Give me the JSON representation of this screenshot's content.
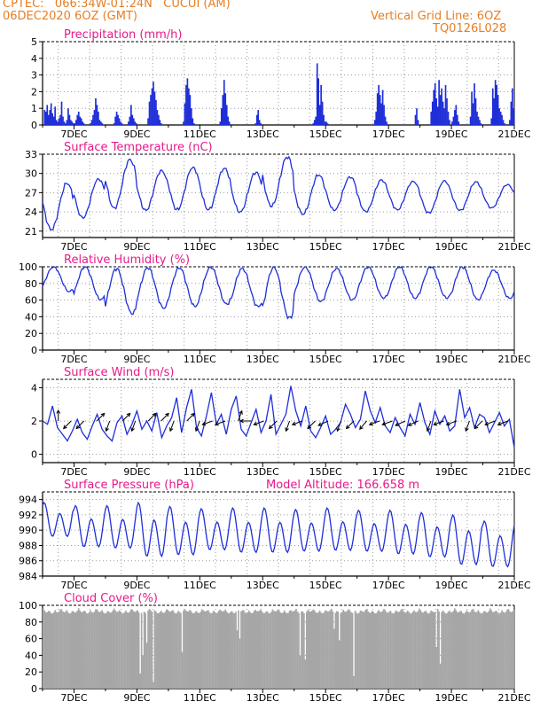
{
  "header": {
    "line1": "CPTEC:   066:34W-01:24N   CUCUI (AM)",
    "line2": "06DEC2020 6OZ (GMT)",
    "grid_note": "Vertical Grid Line: 6OZ",
    "code": "TQ0126L028"
  },
  "colors": {
    "header": "#e67e22",
    "titles": "#e8198b",
    "series": "#1f2fd8",
    "cloud": "#a6a6a6",
    "arrows": "#000000"
  },
  "chart_data": [
    {
      "type": "bar",
      "title": "Precipitation (mm/h)",
      "x_ticks": [
        "7DEC",
        "9DEC",
        "11DEC",
        "13DEC",
        "15DEC",
        "17DEC",
        "19DEC",
        "21DEC"
      ],
      "ylim": [
        0,
        5
      ],
      "y_ticks": [
        0,
        1,
        2,
        3,
        4,
        5
      ],
      "days": [
        [
          0,
          0.9,
          0.8,
          1.2,
          0.6,
          0.9,
          1.3,
          0.7,
          0.5,
          1.1,
          0.3,
          0.2,
          0.4,
          0.6,
          1.4,
          0.5,
          0.2,
          0.1,
          0.3,
          1.0,
          0.6,
          0.3,
          0.2,
          0.1
        ],
        [
          0.1,
          0.3,
          0.6,
          0.8,
          0.5,
          0.4,
          0.2,
          0.1,
          0,
          0,
          0,
          0,
          0.1,
          0.3,
          0.6,
          0.9,
          1.6,
          1.2,
          0.8,
          0.3,
          0.2,
          0.1,
          0,
          0
        ],
        [
          0,
          0,
          0,
          0,
          0,
          0,
          0.1,
          0.5,
          0.8,
          0.6,
          0.4,
          0.2,
          0.1,
          0,
          0,
          0,
          0,
          0.2,
          0.5,
          1.2,
          0.6,
          0.4,
          0.2,
          0.1
        ],
        [
          0,
          0,
          0,
          0,
          0,
          0,
          0,
          0,
          0.4,
          1.4,
          1.8,
          2.2,
          2.6,
          2.0,
          1.5,
          0.9,
          0.6,
          0.3,
          0.1,
          0,
          0,
          0,
          0,
          0
        ],
        [
          0,
          0,
          0,
          0,
          0,
          0,
          0,
          0,
          0,
          0,
          0,
          0.2,
          1.3,
          2.4,
          2.8,
          2.2,
          1.8,
          1.0,
          0.4,
          0.1,
          0,
          0,
          0,
          0
        ],
        [
          0,
          0,
          0,
          0,
          0,
          0,
          0,
          0,
          0,
          0,
          0,
          0,
          0,
          0,
          0,
          0.2,
          1.0,
          1.8,
          2.7,
          1.9,
          1.2,
          0.5,
          0.2,
          0
        ],
        [
          0,
          0,
          0,
          0,
          0,
          0,
          0,
          0,
          0,
          0,
          0,
          0,
          0,
          0,
          0,
          0,
          0,
          0,
          0.1,
          0.6,
          0.9,
          0.3,
          0.1,
          0
        ],
        [
          0,
          0,
          0,
          0,
          0,
          0,
          0,
          0,
          0,
          0,
          0,
          0,
          0,
          0,
          0,
          0,
          0,
          0,
          0,
          0,
          0,
          0,
          0,
          0
        ],
        [
          0,
          0,
          0,
          0,
          0,
          0,
          0,
          0,
          0,
          0,
          0,
          0,
          0,
          0,
          0.1,
          0.3,
          0.5,
          3.7,
          2.8,
          1.2,
          2.4,
          1.4,
          0.6,
          0.2
        ],
        [
          0.2,
          0.1,
          0,
          0,
          0,
          0,
          0,
          0,
          0,
          0,
          0,
          0,
          0,
          0,
          0,
          0,
          0,
          0,
          0,
          0,
          0,
          0,
          0,
          0
        ],
        [
          0,
          0,
          0,
          0,
          0,
          0,
          0,
          0,
          0,
          0,
          0,
          0,
          0,
          0.3,
          0.8,
          1.9,
          2.4,
          1.8,
          1.3,
          2.1,
          1.2,
          0.5,
          0.2,
          0
        ],
        [
          0,
          0,
          0,
          0,
          0,
          0,
          0,
          0,
          0,
          0,
          0,
          0,
          0,
          0,
          0,
          0,
          0,
          0,
          0,
          0,
          0.6,
          1.0,
          0.3,
          0
        ],
        [
          0,
          0,
          0,
          0,
          0,
          0,
          0,
          0,
          0.8,
          1.4,
          2.1,
          2.5,
          1.6,
          1.1,
          2.7,
          1.8,
          2.2,
          1.4,
          1.0,
          2.4,
          1.6,
          0.8,
          0.3,
          0
        ],
        [
          0.2,
          0.5,
          0.9,
          1.2,
          0.6,
          0.2,
          0,
          0,
          0,
          0,
          0,
          0,
          0,
          0,
          0.5,
          2.0,
          1.3,
          2.5,
          1.6,
          0.8,
          0.5,
          0.3,
          0.1,
          0
        ],
        [
          0,
          0,
          0,
          0,
          0,
          0,
          0.4,
          2.2,
          1.6,
          2.7,
          2.4,
          1.8,
          1.0,
          0.8,
          0.6,
          0.3,
          0.1,
          0,
          0,
          0,
          0.3,
          1.4,
          2.2,
          1.0
        ]
      ]
    },
    {
      "type": "line",
      "title": "Surface Temperature (nC)",
      "x_ticks": [
        "7DEC",
        "9DEC",
        "11DEC",
        "13DEC",
        "15DEC",
        "17DEC",
        "19DEC",
        "21DEC"
      ],
      "ylim": [
        20,
        33
      ],
      "y_ticks": [
        21,
        24,
        27,
        30,
        33
      ],
      "daily_min": [
        21.2,
        23.0,
        24.5,
        24.2,
        24.3,
        24.3,
        23.9,
        24.8,
        23.6,
        24.2,
        24.0,
        24.3,
        23.8,
        24.2,
        24.6
      ],
      "daily_max": [
        28.5,
        29.2,
        32.2,
        30.5,
        31.0,
        30.8,
        30.2,
        32.6,
        29.8,
        29.5,
        29.0,
        28.8,
        28.9,
        28.7,
        28.3
      ]
    },
    {
      "type": "line",
      "title": "Relative Humidity (%)",
      "x_ticks": [
        "7DEC",
        "9DEC",
        "11DEC",
        "13DEC",
        "15DEC",
        "17DEC",
        "19DEC",
        "21DEC"
      ],
      "ylim": [
        0,
        100
      ],
      "y_ticks": [
        0,
        20,
        40,
        60,
        80,
        100
      ],
      "daily_min": [
        70,
        60,
        43,
        50,
        52,
        55,
        52,
        38,
        58,
        60,
        62,
        62,
        62,
        60,
        62
      ],
      "daily_max": [
        100,
        100,
        98,
        99,
        99,
        100,
        98,
        100,
        100,
        98,
        100,
        100,
        100,
        100,
        96
      ]
    },
    {
      "type": "line",
      "title": "Surface Wind (m/s)",
      "x_ticks": [
        "7DEC",
        "9DEC",
        "11DEC",
        "13DEC",
        "15DEC",
        "17DEC",
        "19DEC",
        "21DEC"
      ],
      "ylim": [
        -0.5,
        4.5
      ],
      "y_ticks": [
        0,
        2,
        4
      ],
      "values": [
        2.0,
        1.8,
        2.9,
        1.6,
        1.2,
        0.8,
        1.4,
        2.1,
        1.3,
        0.9,
        1.7,
        2.4,
        1.5,
        1.1,
        0.8,
        1.9,
        2.3,
        1.2,
        1.8,
        2.6,
        1.5,
        2.0,
        1.4,
        2.5,
        1.0,
        1.7,
        2.2,
        3.4,
        1.3,
        2.8,
        3.9,
        1.6,
        1.1,
        2.3,
        3.7,
        1.8,
        2.4,
        1.2,
        2.7,
        3.5,
        1.5,
        1.1,
        1.9,
        2.7,
        1.3,
        2.0,
        3.6,
        1.2,
        1.8,
        2.4,
        4.1,
        2.6,
        1.7,
        2.9,
        1.4,
        1.0,
        1.6,
        2.3,
        1.2,
        1.5,
        1.9,
        3.0,
        2.4,
        1.6,
        2.1,
        3.8,
        2.6,
        1.9,
        2.8,
        1.7,
        1.3,
        2.2,
        1.6,
        1.1,
        2.4,
        1.8,
        3.1,
        1.9,
        1.2,
        2.6,
        1.8,
        2.3,
        1.4,
        1.7,
        3.9,
        2.2,
        2.8,
        1.6,
        2.4,
        2.2,
        1.3,
        1.9,
        2.5,
        1.7,
        2.1,
        0.4
      ],
      "arrow_direction_deg": [
        0,
        225,
        225,
        45,
        200,
        45,
        200,
        45,
        45,
        200,
        45,
        200,
        250,
        250,
        20,
        270,
        250,
        225,
        200,
        250,
        225,
        245,
        200,
        225,
        220,
        250,
        250,
        245,
        245,
        200,
        250,
        250,
        200,
        225,
        250,
        250
      ]
    },
    {
      "type": "line",
      "title": "Surface Pressure (hPa)",
      "annotation": "Model Altitude: 166.658  m",
      "x_ticks": [
        "7DEC",
        "9DEC",
        "11DEC",
        "13DEC",
        "15DEC",
        "17DEC",
        "19DEC",
        "21DEC"
      ],
      "ylim": [
        984,
        995
      ],
      "y_ticks": [
        984,
        986,
        988,
        990,
        992,
        994
      ],
      "daily_max": [
        993.6,
        993.2,
        993.2,
        993.6,
        993.1,
        992.8,
        992.9,
        992.9,
        992.7,
        992.9,
        992.6,
        992.6,
        992.3,
        992.0,
        991.2
      ],
      "daily_min": [
        988.5,
        987.0,
        986.8,
        985.5,
        985.8,
        986.6,
        986.2,
        986.2,
        986.4,
        986.5,
        986.4,
        986.0,
        985.6,
        984.5,
        984.3
      ]
    },
    {
      "type": "bar",
      "title": "Cloud Cover (%)",
      "x_ticks": [
        "7DEC",
        "9DEC",
        "11DEC",
        "13DEC",
        "15DEC",
        "17DEC",
        "19DEC",
        "21DEC"
      ],
      "ylim": [
        0,
        100
      ],
      "y_ticks": [
        0,
        20,
        40,
        60,
        80,
        100
      ],
      "typical_value": 97,
      "dips": [
        [
          74,
          18
        ],
        [
          76,
          40
        ],
        [
          79,
          55
        ],
        [
          84,
          8
        ],
        [
          106,
          44
        ],
        [
          148,
          70
        ],
        [
          150,
          60
        ],
        [
          196,
          40
        ],
        [
          200,
          35
        ],
        [
          222,
          72
        ],
        [
          226,
          58
        ],
        [
          237,
          15
        ],
        [
          300,
          50
        ],
        [
          303,
          30
        ],
        [
          366,
          18
        ],
        [
          368,
          40
        ],
        [
          372,
          55
        ],
        [
          410,
          80
        ],
        [
          436,
          50
        ],
        [
          470,
          80
        ],
        [
          505,
          60
        ],
        [
          510,
          75
        ],
        [
          532,
          80
        ]
      ]
    }
  ]
}
